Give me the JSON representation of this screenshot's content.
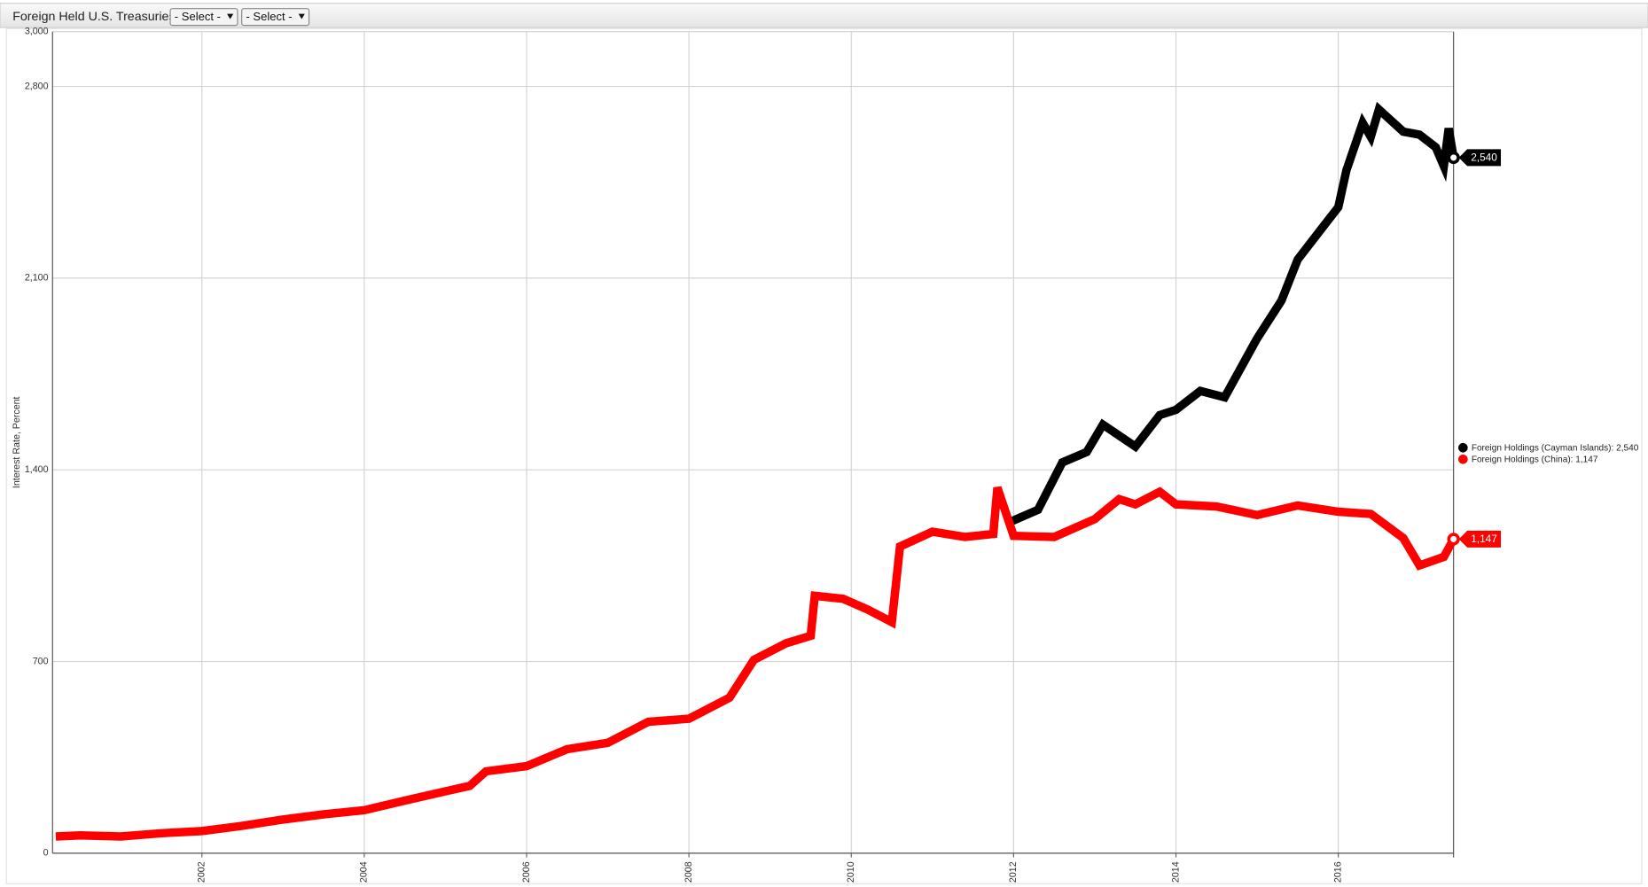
{
  "toolbar": {
    "title": "Foreign Held U.S. Treasuries",
    "selects": [
      "- Select -",
      "- Select -"
    ]
  },
  "chart_data": {
    "type": "line",
    "y_label": "Interest Rate, Percent",
    "xlim": [
      2000.16,
      2017.42
    ],
    "xticks": [
      2002,
      2004,
      2006,
      2008,
      2010,
      2012,
      2014,
      2016
    ],
    "ylim": [
      0,
      3000
    ],
    "yticks": [
      0,
      700,
      {
        "value": 1400,
        "label": "1,400"
      },
      {
        "value": 2100,
        "label": "2,100"
      },
      {
        "value": 2800,
        "label": "2,800"
      },
      {
        "value": 3000,
        "label": "3,000"
      }
    ],
    "grid": true,
    "legend": "right",
    "series": [
      {
        "name": "Foreign Holdings (Cayman Islands): 2,540",
        "color": "#000000",
        "x": [
          2011.92,
          2012.3,
          2012.6,
          2012.9,
          2013.1,
          2013.5,
          2013.8,
          2014.0,
          2014.3,
          2014.6,
          2015.0,
          2015.3,
          2015.5,
          2015.8,
          2016.0,
          2016.1,
          2016.3,
          2016.4,
          2016.5,
          2016.8,
          2017.0,
          2017.2,
          2017.3,
          2017.36,
          2017.42
        ],
        "values": [
          1205,
          1254,
          1427,
          1465,
          1565,
          1485,
          1600,
          1619,
          1688,
          1665,
          1880,
          2018,
          2168,
          2283,
          2359,
          2494,
          2667,
          2616,
          2716,
          2635,
          2624,
          2578,
          2509,
          2647,
          2540
        ],
        "value_labels": [
          null,
          null,
          null,
          null,
          null,
          null,
          null,
          null,
          null,
          null,
          null,
          null,
          null,
          null,
          null,
          null,
          null,
          null,
          null,
          null,
          null,
          null,
          null,
          null,
          "2,540"
        ]
      },
      {
        "name": "Foreign Holdings (China): 1,147",
        "color": "#ff0000",
        "x": [
          2000.2,
          2000.5,
          2001.0,
          2001.5,
          2002.0,
          2002.5,
          2003.0,
          2003.5,
          2004.0,
          2004.5,
          2005.0,
          2005.3,
          2005.5,
          2006.0,
          2006.5,
          2007.0,
          2007.5,
          2008.0,
          2008.5,
          2008.8,
          2009.2,
          2009.5,
          2009.55,
          2009.9,
          2010.2,
          2010.5,
          2010.6,
          2011.0,
          2011.4,
          2011.75,
          2011.8,
          2012.0,
          2012.5,
          2013.0,
          2013.3,
          2013.5,
          2013.8,
          2014.0,
          2014.5,
          2015.0,
          2015.5,
          2016.0,
          2016.4,
          2016.8,
          2017.0,
          2017.3,
          2017.42
        ],
        "values": [
          61,
          65,
          61,
          73,
          81,
          100,
          123,
          142,
          157,
          192,
          226,
          246,
          299,
          318,
          380,
          403,
          480,
          491,
          568,
          706,
          767,
          794,
          940,
          929,
          890,
          844,
          1120,
          1174,
          1155,
          1166,
          1335,
          1159,
          1155,
          1220,
          1293,
          1274,
          1320,
          1274,
          1266,
          1235,
          1270,
          1247,
          1239,
          1151,
          1051,
          1082,
          1147
        ],
        "value_labels": [
          null,
          null,
          null,
          null,
          null,
          null,
          null,
          null,
          null,
          null,
          null,
          null,
          null,
          null,
          null,
          null,
          null,
          null,
          null,
          null,
          null,
          null,
          null,
          null,
          null,
          null,
          null,
          null,
          null,
          null,
          null,
          null,
          null,
          null,
          null,
          null,
          null,
          null,
          null,
          null,
          null,
          null,
          null,
          null,
          null,
          null,
          "1,147"
        ]
      }
    ]
  }
}
